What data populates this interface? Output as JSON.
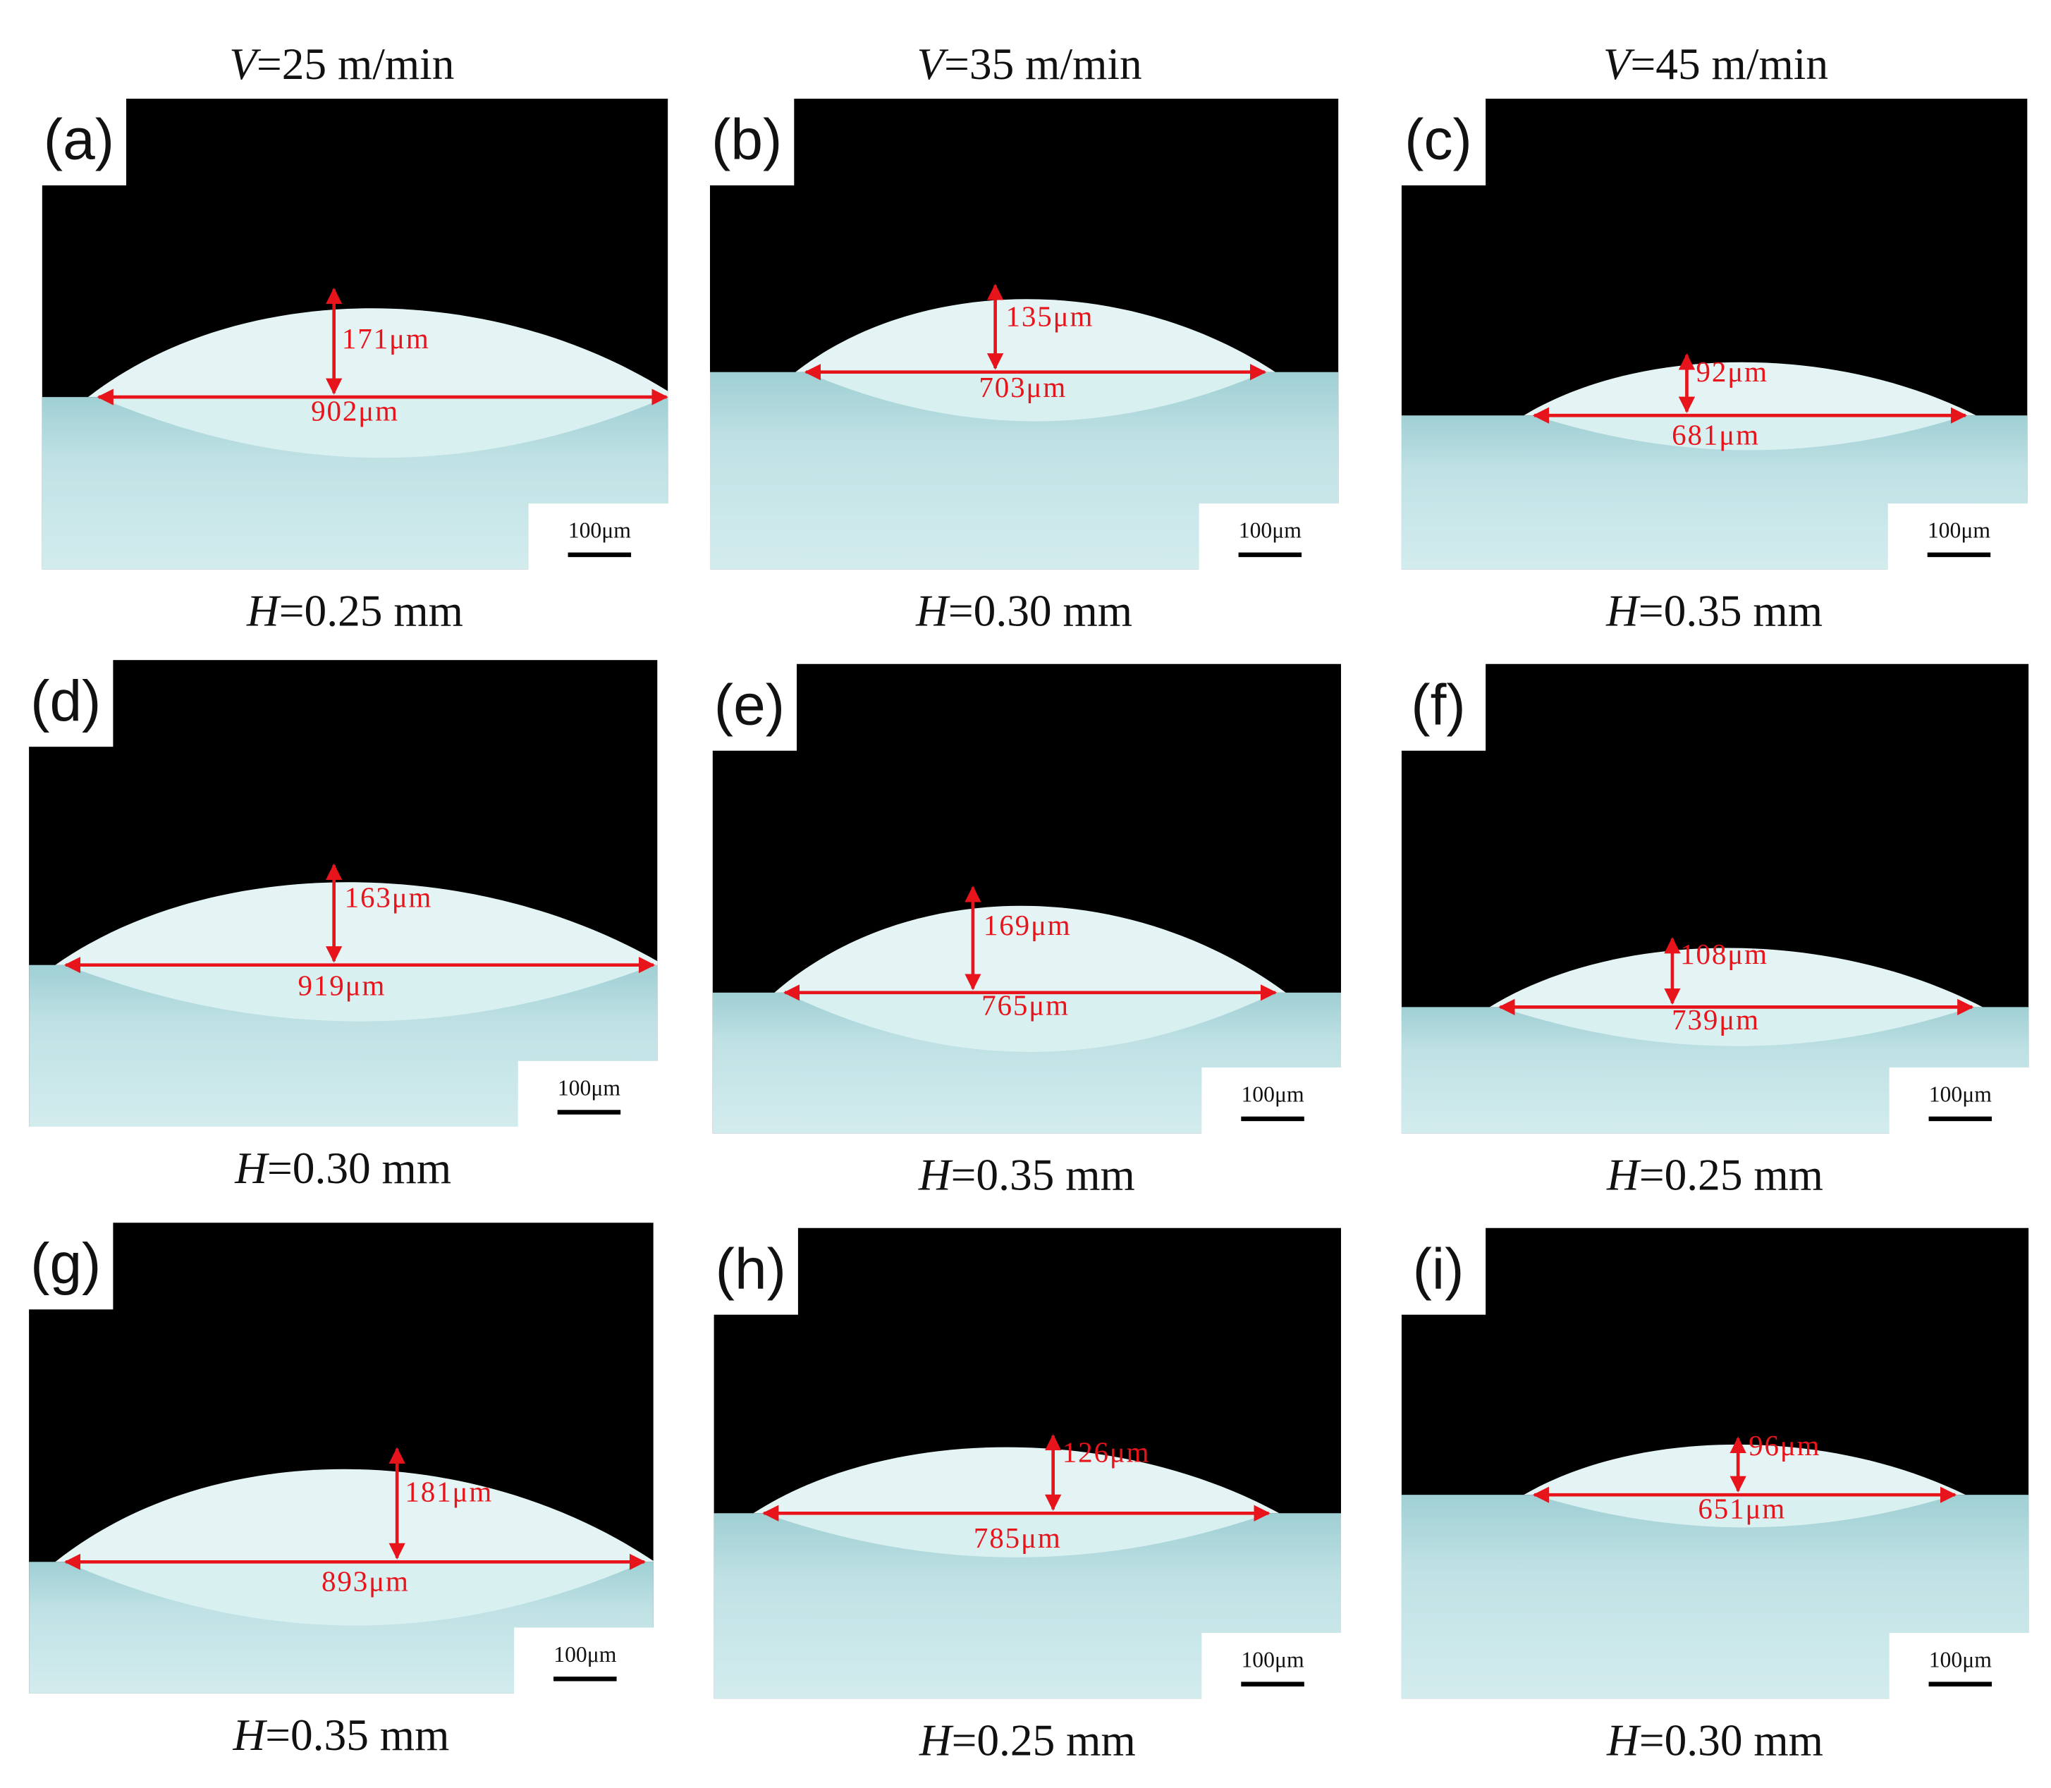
{
  "columns": [
    {
      "var": "V",
      "text": "=25 m/min"
    },
    {
      "var": "V",
      "text": "=35 m/min"
    },
    {
      "var": "V",
      "text": "=45 m/min"
    }
  ],
  "panels": [
    {
      "label": "(a)",
      "height": "171μm",
      "width": "902μm",
      "scale": "100μm",
      "caption": {
        "var": "H",
        "text": "=0.25 mm"
      }
    },
    {
      "label": "(b)",
      "height": "135μm",
      "width": "703μm",
      "scale": "100μm",
      "caption": {
        "var": "H",
        "text": "=0.30 mm"
      }
    },
    {
      "label": "(c)",
      "height": "92μm",
      "width": "681μm",
      "scale": "100μm",
      "caption": {
        "var": "H",
        "text": "=0.35 mm"
      }
    },
    {
      "label": "(d)",
      "height": "163μm",
      "width": "919μm",
      "scale": "100μm",
      "caption": {
        "var": "H",
        "text": "=0.30 mm"
      }
    },
    {
      "label": "(e)",
      "height": "169μm",
      "width": "765μm",
      "scale": "100μm",
      "caption": {
        "var": "H",
        "text": "=0.35 mm"
      }
    },
    {
      "label": "(f)",
      "height": "108μm",
      "width": "739μm",
      "scale": "100μm",
      "caption": {
        "var": "H",
        "text": "=0.25 mm"
      }
    },
    {
      "label": "(g)",
      "height": "181μm",
      "width": "893μm",
      "scale": "100μm",
      "caption": {
        "var": "H",
        "text": "=0.35 mm"
      }
    },
    {
      "label": "(h)",
      "height": "126μm",
      "width": "785μm",
      "scale": "100μm",
      "caption": {
        "var": "H",
        "text": "=0.25 mm"
      }
    },
    {
      "label": "(i)",
      "height": "96μm",
      "width": "651μm",
      "scale": "100μm",
      "caption": {
        "var": "H",
        "text": "=0.30 mm"
      }
    }
  ]
}
